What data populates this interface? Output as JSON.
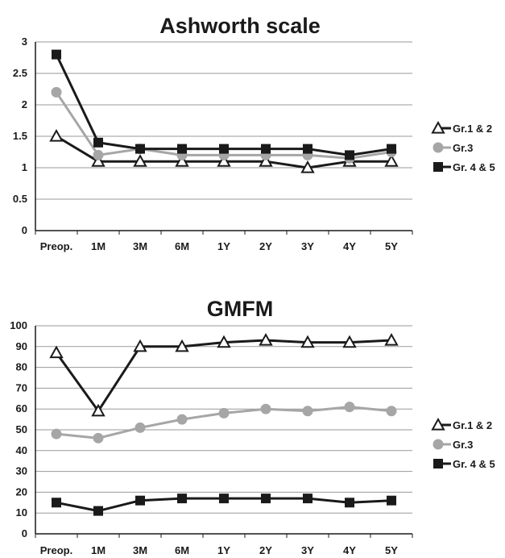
{
  "chart_data": [
    {
      "type": "line",
      "title": "Ashworth scale",
      "xlabel": "",
      "ylabel": "",
      "categories": [
        "Preop.",
        "1M",
        "3M",
        "6M",
        "1Y",
        "2Y",
        "3Y",
        "4Y",
        "5Y"
      ],
      "ylim": [
        0,
        3
      ],
      "yticks": [
        0,
        0.5,
        1,
        1.5,
        2,
        2.5,
        3
      ],
      "grid": true,
      "legend_position": "right",
      "series": [
        {
          "name": "Gr.1 & 2",
          "marker": "triangle-open",
          "color": "#1a1a1a",
          "values": [
            1.5,
            1.1,
            1.1,
            1.1,
            1.1,
            1.1,
            1.0,
            1.1,
            1.1
          ]
        },
        {
          "name": "Gr.3",
          "marker": "circle",
          "color": "#a6a6a6",
          "values": [
            2.2,
            1.2,
            1.3,
            1.2,
            1.2,
            1.2,
            1.2,
            1.15,
            1.25
          ]
        },
        {
          "name": "Gr. 4 & 5",
          "marker": "square",
          "color": "#1a1a1a",
          "values": [
            2.8,
            1.4,
            1.3,
            1.3,
            1.3,
            1.3,
            1.3,
            1.2,
            1.3
          ]
        }
      ]
    },
    {
      "type": "line",
      "title": "GMFM",
      "xlabel": "",
      "ylabel": "",
      "categories": [
        "Preop.",
        "1M",
        "3M",
        "6M",
        "1Y",
        "2Y",
        "3Y",
        "4Y",
        "5Y"
      ],
      "ylim": [
        0,
        100
      ],
      "yticks": [
        0,
        10,
        20,
        30,
        40,
        50,
        60,
        70,
        80,
        90,
        100
      ],
      "grid": true,
      "legend_position": "right",
      "series": [
        {
          "name": "Gr.1 & 2",
          "marker": "triangle-open",
          "color": "#1a1a1a",
          "values": [
            87,
            59,
            90,
            90,
            92,
            93,
            92,
            92,
            93
          ]
        },
        {
          "name": "Gr.3",
          "marker": "circle",
          "color": "#a6a6a6",
          "values": [
            48,
            46,
            51,
            55,
            58,
            60,
            59,
            61,
            59
          ]
        },
        {
          "name": "Gr. 4 & 5",
          "marker": "square",
          "color": "#1a1a1a",
          "values": [
            15,
            11,
            16,
            17,
            17,
            17,
            17,
            15,
            16
          ]
        }
      ]
    }
  ]
}
